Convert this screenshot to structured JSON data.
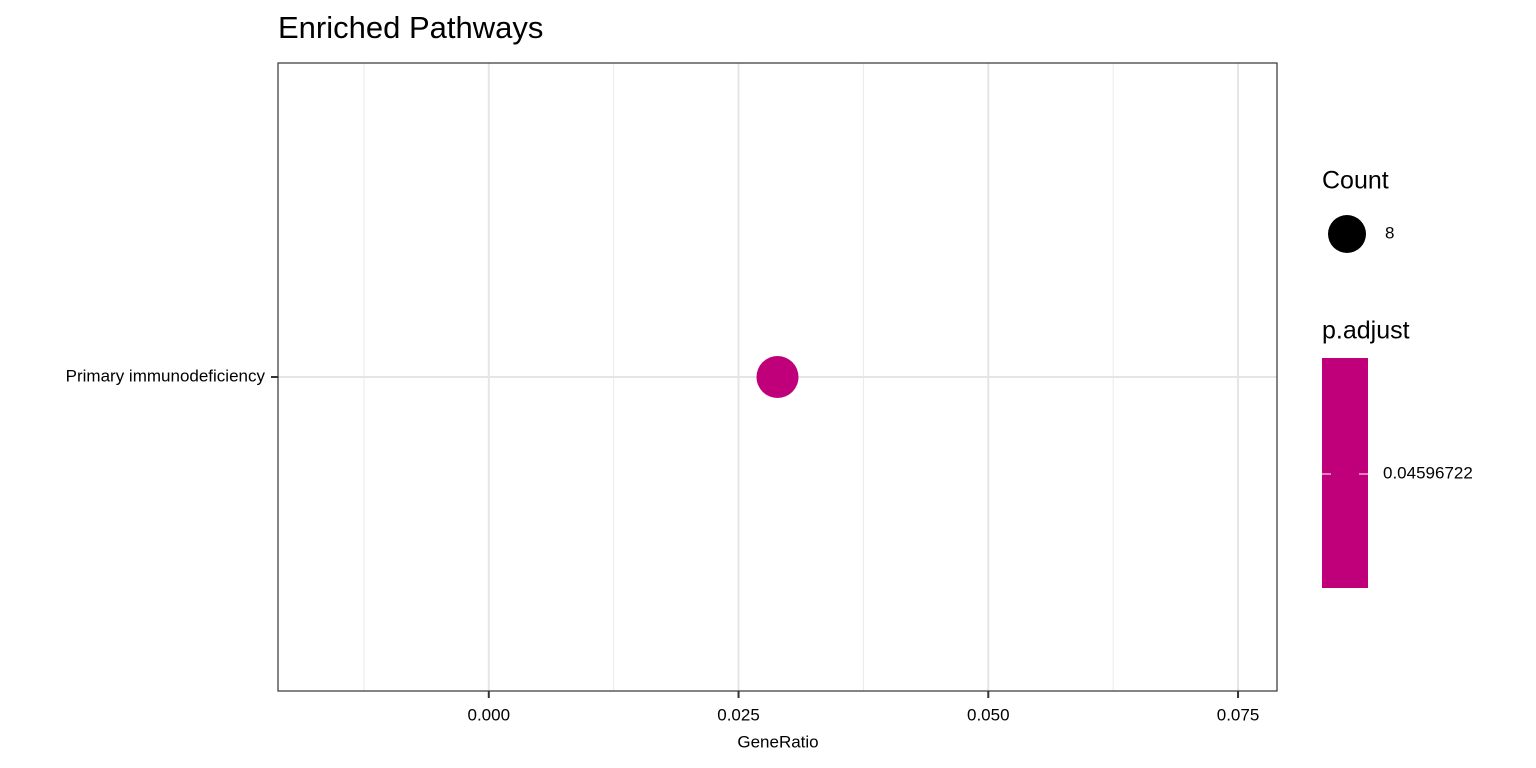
{
  "chart_data": {
    "type": "dot",
    "title": "Enriched Pathways",
    "x_label": "GeneRatio",
    "categories": [
      "Primary immunodeficiency"
    ],
    "values": [
      0.0289
    ],
    "sizes": [
      8
    ],
    "p_adjust": [
      0.04596722
    ],
    "color": "#c0007a",
    "xlim": [
      -0.0211,
      0.0789
    ],
    "xticks": [
      {
        "value": 0,
        "label": "0.000"
      },
      0.025,
      {
        "value": 0.05,
        "label": "0.050"
      },
      0.075
    ],
    "minor_xticks": [
      -0.0125,
      0.0125,
      0.0375,
      0.0625
    ],
    "grid": true,
    "size_legend": {
      "title": "Count",
      "values": [
        8
      ]
    },
    "color_legend": {
      "title": "p.adjust",
      "ticks": [
        0.04596722
      ]
    }
  }
}
